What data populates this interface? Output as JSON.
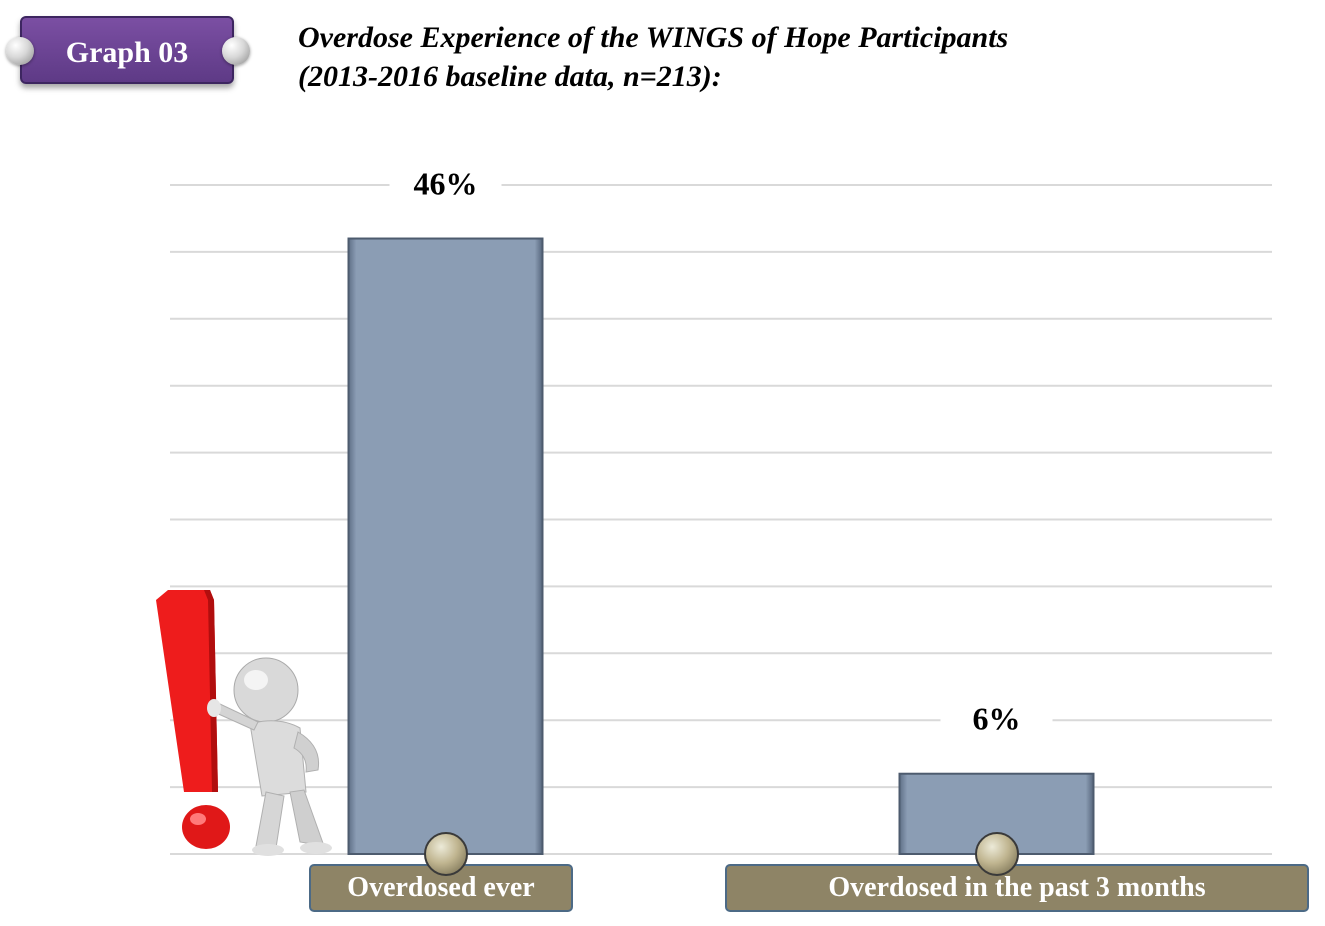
{
  "badge": {
    "label": "Graph 03"
  },
  "title": {
    "line1": "Overdose Experience of the WINGS of Hope Participants",
    "line2": "(2013-2016 baseline data, n=213):"
  },
  "chart_data": {
    "type": "bar",
    "categories": [
      "Overdosed ever",
      "Overdosed in the past 3 months"
    ],
    "values": [
      46,
      6
    ],
    "data_labels": [
      "46%",
      "6%"
    ],
    "ylim": [
      0,
      50
    ],
    "grid": true,
    "colors": {
      "bar": "#8b9db4",
      "category_box": "#8e8466",
      "grid": "#d9d9d9"
    }
  },
  "decoration": {
    "illustration": "figure-leaning-on-exclamation-mark"
  }
}
